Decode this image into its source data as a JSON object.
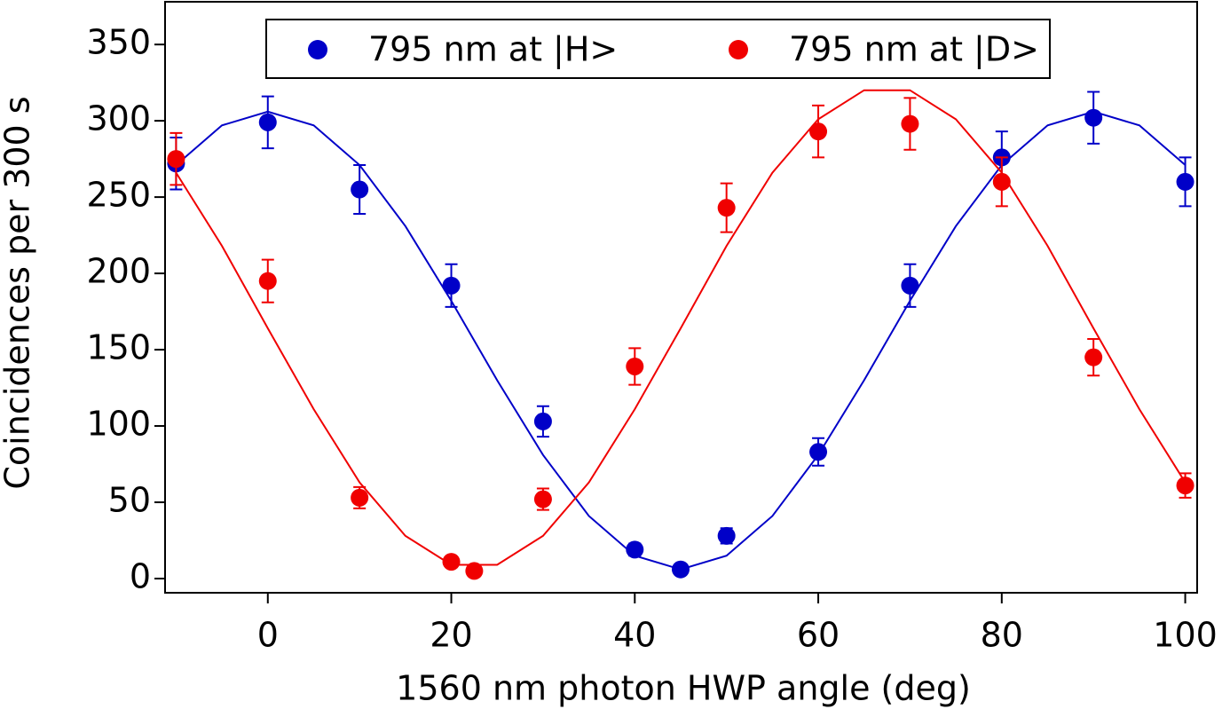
{
  "chart_data": {
    "type": "scatter",
    "xlabel": "1560 nm photon HWP angle (deg)",
    "ylabel": "Coincidences per 300 s",
    "xlim": [
      -11.2,
      101.3
    ],
    "ylim": [
      -9.3,
      378
    ],
    "xticks": [
      0,
      20,
      40,
      60,
      80,
      100
    ],
    "yticks": [
      0,
      50,
      100,
      150,
      200,
      250,
      300,
      350
    ],
    "legend": "top",
    "series": [
      {
        "name": "795 nm at |H>",
        "color": "#0000c8",
        "x": [
          -10,
          0,
          10,
          20,
          30,
          40,
          45,
          50,
          60,
          70,
          80,
          90,
          100
        ],
        "values": [
          272,
          299,
          255,
          192,
          103,
          19,
          6,
          28,
          83,
          192,
          276,
          302,
          260
        ],
        "errors": [
          17,
          17,
          16,
          14,
          10,
          4,
          2,
          5,
          9,
          14,
          17,
          17,
          16
        ],
        "fit": {
          "x": [
            -10,
            -5,
            0,
            5,
            10,
            15,
            20,
            25,
            30,
            35,
            40,
            45,
            50,
            55,
            60,
            65,
            70,
            75,
            80,
            85,
            90,
            95,
            100
          ],
          "values": [
            271,
            297,
            306,
            297,
            271,
            231,
            182,
            130,
            81,
            41,
            15,
            6,
            15,
            41,
            81,
            130,
            182,
            231,
            271,
            297,
            306,
            297,
            271
          ]
        }
      },
      {
        "name": "795 nm at |D>",
        "color": "#f00000",
        "x": [
          -10,
          0,
          10,
          20,
          22.5,
          30,
          40,
          50,
          60,
          70,
          80,
          90,
          100
        ],
        "values": [
          275,
          195,
          53,
          11,
          5,
          52,
          139,
          243,
          293,
          298,
          260,
          145,
          61
        ],
        "errors": [
          17,
          14,
          7,
          2,
          2,
          7,
          12,
          16,
          17,
          17,
          16,
          12,
          8
        ],
        "fit": {
          "x": [
            -10,
            -5,
            0,
            5,
            10,
            15,
            20,
            25,
            30,
            35,
            40,
            45,
            50,
            55,
            60,
            65,
            70,
            75,
            80,
            85,
            90,
            95,
            100
          ],
          "values": [
            266,
            218,
            164,
            111,
            63,
            28,
            9,
            9,
            28,
            63,
            111,
            164,
            218,
            266,
            301,
            320,
            320,
            301,
            266,
            218,
            164,
            111,
            63
          ]
        }
      }
    ]
  }
}
